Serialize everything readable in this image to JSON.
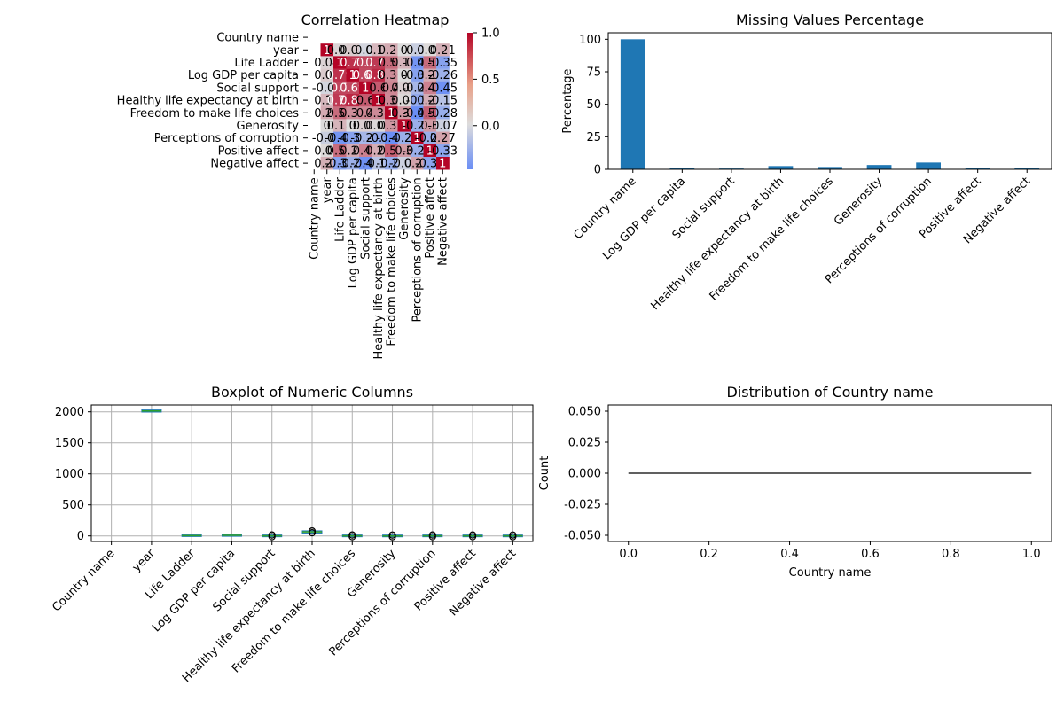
{
  "chart_data": [
    {
      "type": "heatmap",
      "title": "Correlation Heatmap",
      "rows": [
        "Country name",
        "year",
        "Life Ladder",
        "Log GDP per capita",
        "Social support",
        "Healthy life expectancy at birth",
        "Freedom to make life choices",
        "Generosity",
        "Perceptions of corruption",
        "Positive affect",
        "Negative affect"
      ],
      "columns": [
        "Country name",
        "year",
        "Life Ladder",
        "Log GDP per capita",
        "Social support",
        "Healthy life expectancy at birth",
        "Freedom to make life choices",
        "Generosity",
        "Perceptions of corruption",
        "Positive affect",
        "Negative affect"
      ],
      "values": [
        [
          null,
          null,
          null,
          null,
          null,
          null,
          null,
          null,
          null,
          null,
          null
        ],
        [
          null,
          1,
          0.04,
          0.08,
          -0.04,
          0.17,
          0.23,
          0.0,
          -0.08,
          0.01,
          0.21
        ],
        [
          null,
          0.04,
          1,
          0.79,
          0.7,
          0.75,
          0.52,
          0.18,
          -0.43,
          0.52,
          -0.35
        ],
        [
          null,
          0.08,
          0.79,
          1,
          0.69,
          0.84,
          0.36,
          -0.0,
          -0.35,
          0.23,
          -0.26
        ],
        [
          null,
          -0.04,
          0.7,
          0.69,
          1,
          0.6,
          0.4,
          0.06,
          -0.22,
          0.42,
          -0.45
        ],
        [
          null,
          0.17,
          0.75,
          0.84,
          0.6,
          1,
          0.38,
          0.02,
          -0.3,
          0.22,
          -0.15
        ],
        [
          null,
          0.23,
          0.52,
          0.36,
          0.4,
          0.38,
          1,
          0.32,
          -0.47,
          0.58,
          -0.28
        ],
        [
          null,
          0.0,
          0.18,
          -0.0,
          0.06,
          0.02,
          0.32,
          1,
          -0.27,
          0.3,
          -0.07
        ],
        [
          null,
          -0.08,
          -0.43,
          -0.35,
          -0.22,
          -0.3,
          -0.47,
          -0.27,
          1,
          -0.27,
          0.27
        ],
        [
          null,
          0.01,
          0.52,
          0.23,
          0.42,
          0.22,
          0.58,
          0.3,
          -0.27,
          1,
          -0.33
        ],
        [
          null,
          0.21,
          -0.35,
          -0.26,
          -0.45,
          -0.15,
          -0.28,
          -0.07,
          0.27,
          -0.33,
          1
        ]
      ],
      "colorbar_ticks": [
        "1.0",
        "0.5",
        "0.0"
      ],
      "colormap": {
        "low": "#6a8ef5",
        "mid": "#dddcdc",
        "high": "#b40426"
      }
    },
    {
      "type": "bar",
      "title": "Missing Values Percentage",
      "ylabel": "Percentage",
      "xlabel": "",
      "categories": [
        "Country name",
        "Log GDP per capita",
        "Social support",
        "Healthy life expectancy at birth",
        "Freedom to make life choices",
        "Generosity",
        "Perceptions of corruption",
        "Positive affect",
        "Negative affect"
      ],
      "values": [
        100,
        1.0,
        0.6,
        2.5,
        1.8,
        3.3,
        5.2,
        1.1,
        0.7
      ],
      "ylim": [
        0,
        105
      ],
      "yticks": [
        "0",
        "25",
        "50",
        "75",
        "100"
      ],
      "ytick_values": [
        0,
        25,
        50,
        75,
        100
      ],
      "color": "#1f77b4"
    },
    {
      "type": "box",
      "title": "Boxplot of Numeric Columns",
      "categories": [
        "Country name",
        "year",
        "Life Ladder",
        "Log GDP per capita",
        "Social support",
        "Healthy life expectancy at birth",
        "Freedom to make life choices",
        "Generosity",
        "Perceptions of corruption",
        "Positive affect",
        "Negative affect"
      ],
      "boxes": [
        null,
        {
          "min": 2005,
          "q1": 2010,
          "median": 2014,
          "q3": 2019,
          "max": 2023
        },
        {
          "min": 1.3,
          "q1": 4.6,
          "median": 5.4,
          "q3": 6.3,
          "max": 8.0
        },
        {
          "min": 5.5,
          "q1": 8.5,
          "median": 9.5,
          "q3": 10.4,
          "max": 11.7
        },
        {
          "min": 0.29,
          "q1": 0.74,
          "median": 0.83,
          "q3": 0.9,
          "max": 0.99
        },
        {
          "min": 38,
          "q1": 59,
          "median": 65,
          "q3": 68,
          "max": 75
        },
        {
          "min": 0.23,
          "q1": 0.66,
          "median": 0.77,
          "q3": 0.86,
          "max": 0.99
        },
        {
          "min": -0.34,
          "q1": -0.11,
          "median": -0.02,
          "q3": 0.09,
          "max": 0.7
        },
        {
          "min": 0.03,
          "q1": 0.69,
          "median": 0.8,
          "q3": 0.87,
          "max": 0.98
        },
        {
          "min": 0.18,
          "q1": 0.57,
          "median": 0.66,
          "q3": 0.74,
          "max": 0.88
        },
        {
          "min": 0.08,
          "q1": 0.21,
          "median": 0.26,
          "q3": 0.32,
          "max": 0.71
        }
      ],
      "ylim": [
        -90,
        2110
      ],
      "yticks": [
        "0",
        "500",
        "1000",
        "1500",
        "2000"
      ],
      "ytick_values": [
        0,
        500,
        1000,
        1500,
        2000
      ],
      "grid": true
    },
    {
      "type": "line",
      "title": "Distribution of Country name",
      "xlabel": "Country name",
      "ylabel": "Count",
      "x": [
        0,
        1
      ],
      "y": [
        0,
        0
      ],
      "xlim": [
        -0.05,
        1.05
      ],
      "ylim": [
        -0.055,
        0.055
      ],
      "xticks": [
        "0.0",
        "0.2",
        "0.4",
        "0.6",
        "0.8",
        "1.0"
      ],
      "xtick_values": [
        0,
        0.2,
        0.4,
        0.6,
        0.8,
        1.0
      ],
      "yticks": [
        "0.050",
        "0.025",
        "0.000",
        "-0.025",
        "-0.050"
      ],
      "ytick_values": [
        0.05,
        0.025,
        0,
        -0.025,
        -0.05
      ]
    }
  ]
}
